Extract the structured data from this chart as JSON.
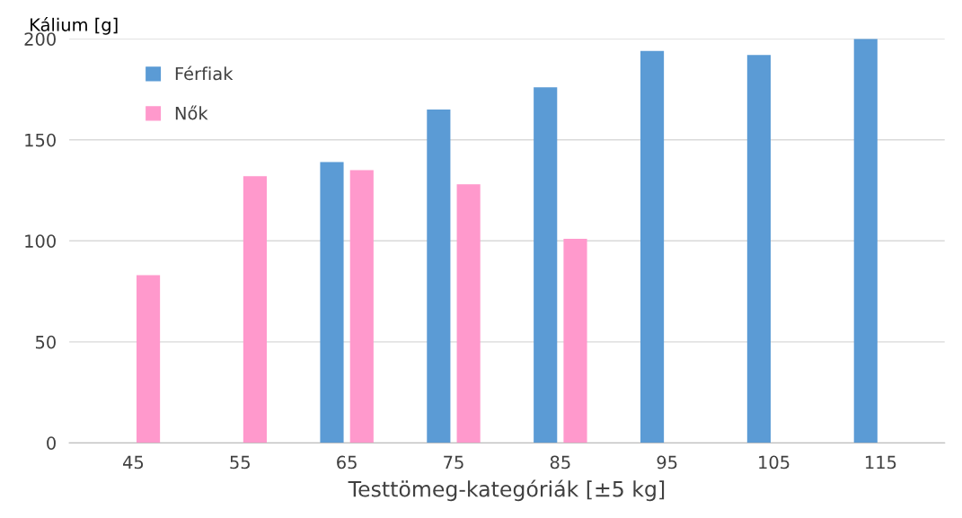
{
  "chart_data": {
    "type": "bar",
    "ylabel": "Kálium [g]",
    "xlabel": "Testtömeg-kategóriák [±5 kg]",
    "categories": [
      "45",
      "55",
      "65",
      "75",
      "85",
      "95",
      "105",
      "115"
    ],
    "series": [
      {
        "name": "Férfiak",
        "color": "#5b9bd5",
        "values": [
          null,
          null,
          139,
          165,
          176,
          194,
          192,
          200
        ]
      },
      {
        "name": "Nők",
        "color": "#ff99cc",
        "values": [
          83,
          132,
          135,
          128,
          101,
          null,
          null,
          null
        ]
      }
    ],
    "ylim": [
      0,
      200
    ],
    "yticks": [
      0,
      50,
      100,
      150,
      200
    ],
    "grid": "y",
    "legend": "top left"
  }
}
